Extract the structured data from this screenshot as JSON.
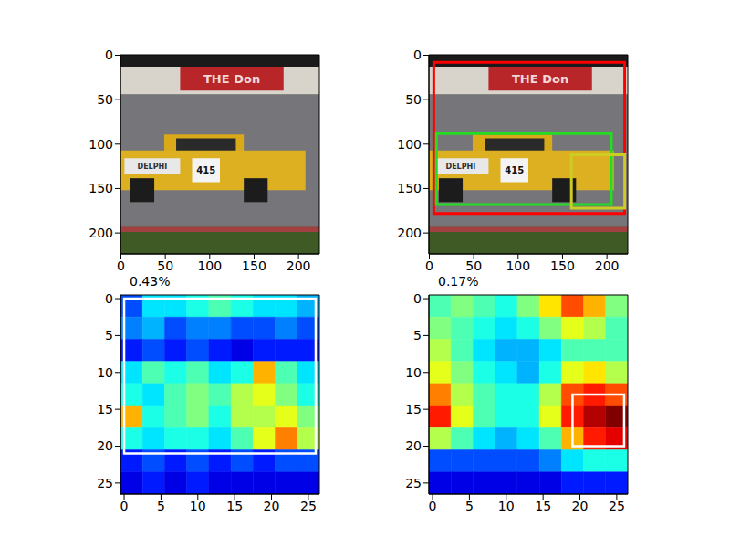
{
  "chart_data": [
    {
      "type": "image",
      "xlim": [
        -0.5,
        223.5
      ],
      "ylim": [
        223.5,
        -0.5
      ],
      "xticks": [
        0,
        50,
        100,
        150,
        200
      ],
      "yticks": [
        0,
        50,
        100,
        150,
        200
      ],
      "image_texts": [
        "THE Don",
        "DELPHI",
        "415"
      ]
    },
    {
      "type": "image",
      "xlim": [
        -0.5,
        223.5
      ],
      "ylim": [
        223.5,
        -0.5
      ],
      "xticks": [
        0,
        50,
        100,
        150,
        200
      ],
      "yticks": [
        0,
        50,
        100,
        150,
        200
      ],
      "image_texts": [
        "THE Don",
        "DELPHI",
        "415"
      ],
      "boxes": [
        {
          "color": "#ff0000",
          "x": [
            5,
            220
          ],
          "y": [
            8,
            178
          ]
        },
        {
          "color": "#22dd22",
          "x": [
            8,
            205
          ],
          "y": [
            88,
            168
          ]
        },
        {
          "color": "#cccc22",
          "x": [
            160,
            220
          ],
          "y": [
            112,
            172
          ]
        }
      ]
    },
    {
      "type": "heatmap",
      "title": "0.43%",
      "xlim": [
        -0.5,
        26.5
      ],
      "ylim": [
        26.5,
        -0.5
      ],
      "xticks": [
        0,
        5,
        10,
        15,
        20,
        25
      ],
      "yticks": [
        0,
        5,
        10,
        15,
        20,
        25
      ],
      "color_range": [
        0,
        1
      ],
      "cells": [
        [
          0.2,
          0.35,
          0.35,
          0.4,
          0.45,
          0.4,
          0.35,
          0.35,
          0.3
        ],
        [
          0.25,
          0.3,
          0.2,
          0.25,
          0.25,
          0.2,
          0.2,
          0.25,
          0.2
        ],
        [
          0.15,
          0.2,
          0.15,
          0.2,
          0.15,
          0.1,
          0.15,
          0.15,
          0.15
        ],
        [
          0.35,
          0.45,
          0.4,
          0.45,
          0.35,
          0.4,
          0.7,
          0.45,
          0.35
        ],
        [
          0.4,
          0.35,
          0.45,
          0.5,
          0.45,
          0.55,
          0.6,
          0.5,
          0.4
        ],
        [
          0.7,
          0.4,
          0.45,
          0.5,
          0.4,
          0.55,
          0.55,
          0.6,
          0.5
        ],
        [
          0.4,
          0.35,
          0.4,
          0.4,
          0.35,
          0.45,
          0.6,
          0.75,
          0.55
        ],
        [
          0.15,
          0.2,
          0.15,
          0.2,
          0.15,
          0.2,
          0.15,
          0.2,
          0.2
        ],
        [
          0.1,
          0.15,
          0.1,
          0.15,
          0.1,
          0.1,
          0.1,
          0.1,
          0.1
        ]
      ],
      "boxes": [
        {
          "color": "#ffffff",
          "x": [
            0,
            26
          ],
          "y": [
            0,
            21
          ]
        }
      ]
    },
    {
      "type": "heatmap",
      "title": "0.17%",
      "xlim": [
        -0.5,
        26.5
      ],
      "ylim": [
        26.5,
        -0.5
      ],
      "xticks": [
        0,
        5,
        10,
        15,
        20,
        25
      ],
      "yticks": [
        0,
        5,
        10,
        15,
        20,
        25
      ],
      "color_range": [
        0,
        1
      ],
      "cells": [
        [
          0.45,
          0.5,
          0.45,
          0.4,
          0.5,
          0.65,
          0.8,
          0.7,
          0.5
        ],
        [
          0.5,
          0.45,
          0.4,
          0.35,
          0.4,
          0.5,
          0.6,
          0.55,
          0.45
        ],
        [
          0.55,
          0.45,
          0.35,
          0.3,
          0.3,
          0.35,
          0.45,
          0.45,
          0.45
        ],
        [
          0.6,
          0.5,
          0.4,
          0.35,
          0.3,
          0.4,
          0.6,
          0.65,
          0.55
        ],
        [
          0.75,
          0.55,
          0.45,
          0.4,
          0.4,
          0.55,
          0.8,
          0.85,
          0.8
        ],
        [
          0.85,
          0.6,
          0.45,
          0.4,
          0.4,
          0.6,
          0.85,
          0.95,
          1.0
        ],
        [
          0.55,
          0.45,
          0.35,
          0.3,
          0.35,
          0.45,
          0.7,
          0.85,
          0.9
        ],
        [
          0.2,
          0.2,
          0.2,
          0.2,
          0.2,
          0.25,
          0.35,
          0.4,
          0.4
        ],
        [
          0.1,
          0.1,
          0.1,
          0.1,
          0.1,
          0.1,
          0.15,
          0.15,
          0.15
        ]
      ],
      "boxes": [
        {
          "color": "#ffffff",
          "x": [
            19,
            26
          ],
          "y": [
            13,
            20
          ]
        }
      ]
    }
  ]
}
